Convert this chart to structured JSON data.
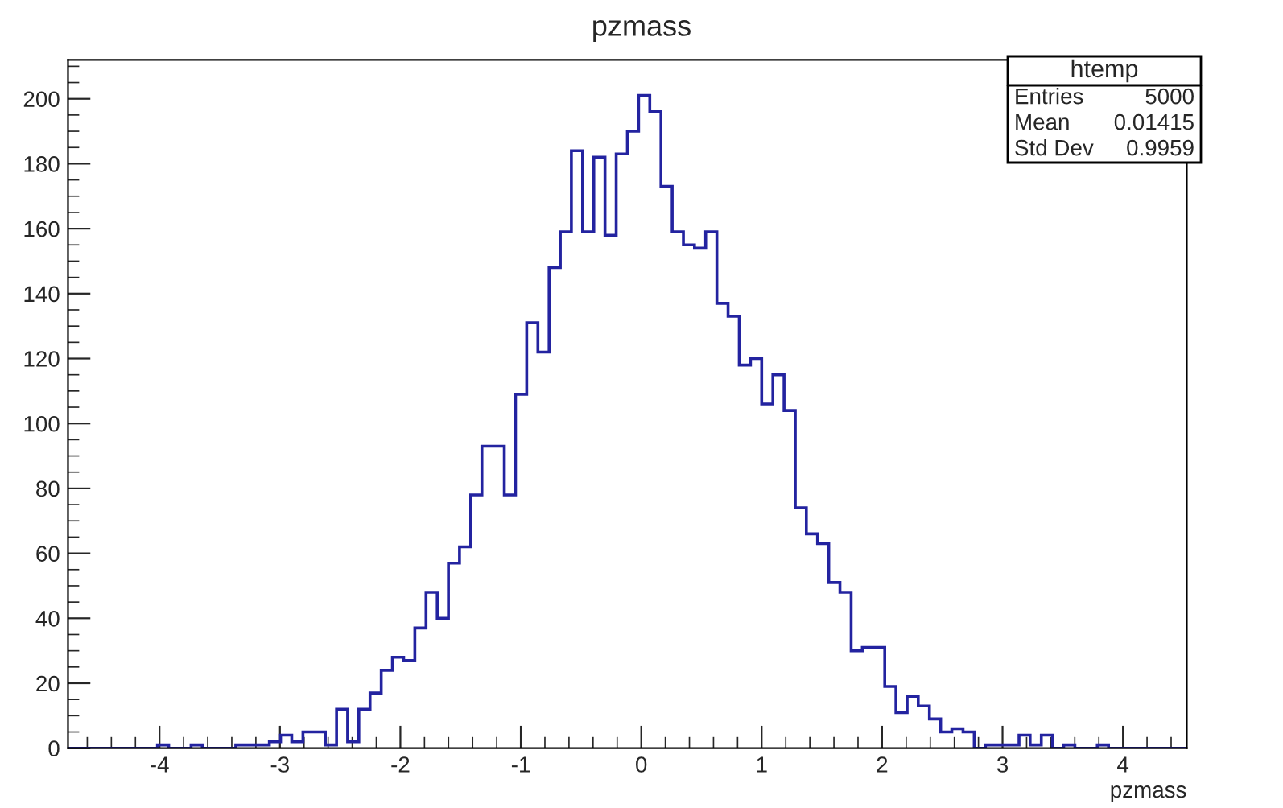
{
  "chart_data": {
    "type": "histogram",
    "title": "pzmass",
    "xlabel": "pzmass",
    "bins": [
      -4.76,
      -4.667,
      -4.574,
      -4.481,
      -4.388,
      -4.295,
      -4.203,
      -4.11,
      -4.017,
      -3.924,
      -3.831,
      -3.738,
      -3.645,
      -3.552,
      -3.459,
      -3.367,
      -3.274,
      -3.181,
      -3.088,
      -2.995,
      -2.902,
      -2.809,
      -2.716,
      -2.623,
      -2.53,
      -2.438,
      -2.345,
      -2.252,
      -2.159,
      -2.066,
      -1.973,
      -1.88,
      -1.787,
      -1.694,
      -1.601,
      -1.509,
      -1.416,
      -1.323,
      -1.23,
      -1.137,
      -1.044,
      -0.951,
      -0.858,
      -0.765,
      -0.672,
      -0.58,
      -0.487,
      -0.394,
      -0.301,
      -0.208,
      -0.115,
      -0.022,
      0.071,
      0.164,
      0.257,
      0.35,
      0.442,
      0.535,
      0.628,
      0.721,
      0.814,
      0.907,
      1.0,
      1.093,
      1.186,
      1.279,
      1.371,
      1.464,
      1.557,
      1.65,
      1.743,
      1.836,
      1.929,
      2.022,
      2.115,
      2.208,
      2.3,
      2.393,
      2.486,
      2.579,
      2.672,
      2.765,
      2.858,
      2.951,
      3.044,
      3.137,
      3.229,
      3.322,
      3.415,
      3.508,
      3.601,
      3.694,
      3.787,
      3.88,
      3.973,
      4.066,
      4.158,
      4.251,
      4.344,
      4.437,
      4.53
    ],
    "values": [
      0,
      0,
      0,
      0,
      0,
      0,
      0,
      0,
      1,
      0,
      0,
      1,
      0,
      0,
      0,
      1,
      1,
      1,
      2,
      4,
      2,
      5,
      5,
      1,
      12,
      2,
      12,
      17,
      24,
      28,
      27,
      37,
      48,
      40,
      57,
      62,
      78,
      93,
      93,
      78,
      109,
      131,
      122,
      148,
      159,
      184,
      159,
      182,
      158,
      183,
      190,
      201,
      196,
      173,
      159,
      155,
      154,
      159,
      137,
      133,
      118,
      120,
      106,
      115,
      104,
      74,
      66,
      63,
      51,
      48,
      30,
      31,
      31,
      19,
      11,
      16,
      13,
      9,
      5,
      6,
      5,
      0,
      1,
      1,
      1,
      4,
      1,
      4,
      0,
      1,
      0,
      0,
      1,
      0,
      0,
      0,
      0,
      0,
      0,
      0
    ],
    "color": "#2323a0",
    "xlim": [
      -4.76,
      4.53
    ],
    "xticks": [
      -4,
      -3,
      -2,
      -1,
      0,
      1,
      2,
      3,
      4
    ],
    "ylim": [
      0,
      212
    ],
    "yticks": [
      0,
      20,
      40,
      60,
      80,
      100,
      120,
      140,
      160,
      180,
      200
    ],
    "grid": false,
    "annotations": [
      "htemp",
      "Entries",
      "5000",
      "Mean",
      "0.01415",
      "Std Dev",
      "0.9959"
    ]
  }
}
